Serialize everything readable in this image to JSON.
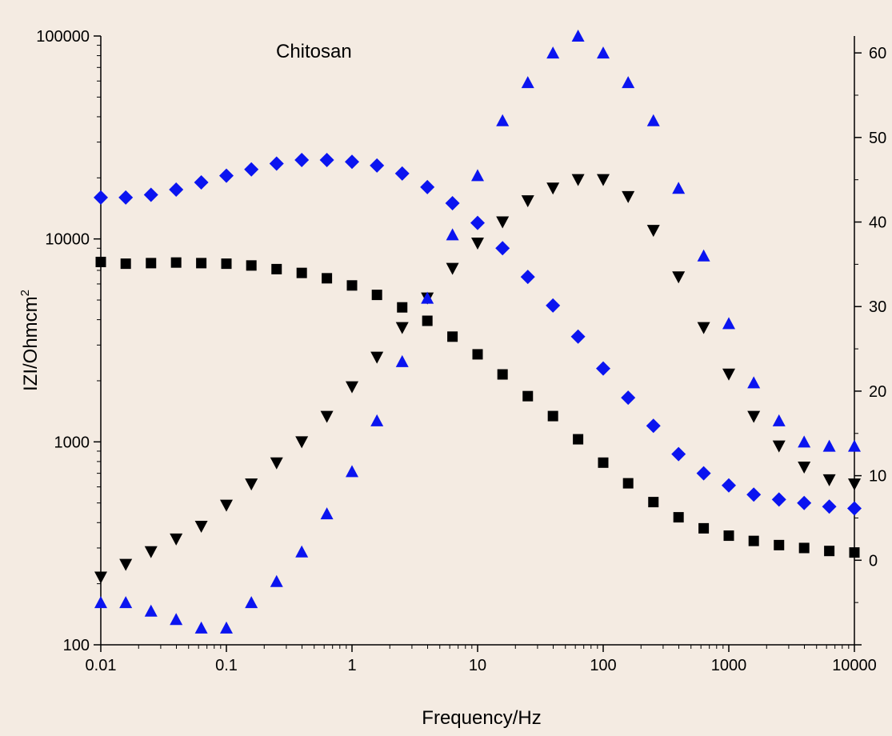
{
  "colors": {
    "background": "#f4ebe2",
    "axis": "#000000",
    "series_square": "#000000",
    "series_down_triangle": "#000000",
    "series_up_triangle": "#0a14f0",
    "series_diamond": "#0a14f0"
  },
  "chart_data": {
    "type": "scatter",
    "title": "",
    "annotation": "Chitosan",
    "xlabel": "Frequency/Hz",
    "ylabel": "IZI/Ohmcm",
    "ylabel_superscript": "2",
    "x_scale": "log",
    "y_left_scale": "log",
    "xlim": [
      0.01,
      10000
    ],
    "ylim_left": [
      100,
      100000
    ],
    "ylim_right": [
      -10,
      62
    ],
    "grid": false,
    "legend": "none",
    "x_ticks": [
      "0.01",
      "0.1",
      "1",
      "10",
      "100",
      "1000",
      "10000"
    ],
    "y_left_ticks": [
      "100",
      "1000",
      "10000",
      "100000"
    ],
    "y_right_ticks": [
      "0",
      "10",
      "20",
      "30",
      "40",
      "50",
      "60"
    ],
    "x": [
      0.01,
      0.0158,
      0.0251,
      0.0398,
      0.0631,
      0.1,
      0.158,
      0.251,
      0.398,
      0.631,
      1.0,
      1.58,
      2.51,
      3.98,
      6.31,
      10,
      15.8,
      25.1,
      39.8,
      63.1,
      100,
      158,
      251,
      398,
      631,
      1000,
      1580,
      2510,
      3980,
      6310,
      10000
    ],
    "series": [
      {
        "marker": "square",
        "axis": "left",
        "values": [
          7700,
          7550,
          7600,
          7650,
          7600,
          7550,
          7400,
          7100,
          6800,
          6400,
          5900,
          5300,
          4600,
          3950,
          3300,
          2700,
          2150,
          1680,
          1340,
          1030,
          790,
          625,
          505,
          425,
          375,
          345,
          325,
          310,
          300,
          290,
          285
        ]
      },
      {
        "marker": "triangle-down",
        "axis": "right",
        "values": [
          -2,
          -0.5,
          1,
          2.5,
          4,
          6.5,
          9,
          11.5,
          14,
          17,
          20.5,
          24,
          27.5,
          31,
          34.5,
          37.5,
          40,
          42.5,
          44,
          45,
          45,
          43,
          39,
          33.5,
          27.5,
          22,
          17,
          13.5,
          11,
          9.5,
          9
        ]
      },
      {
        "marker": "triangle-up",
        "axis": "right",
        "values": [
          -5,
          -5,
          -6,
          -7,
          -8,
          -8,
          -5,
          -2.5,
          1,
          5.5,
          10.5,
          16.5,
          23.5,
          31,
          38.5,
          45.5,
          52,
          56.5,
          60,
          62,
          60,
          56.5,
          52,
          44,
          36,
          28,
          21,
          16.5,
          14,
          13.5,
          13.5
        ]
      },
      {
        "marker": "diamond",
        "axis": "left",
        "values": [
          16000,
          16000,
          16500,
          17500,
          19000,
          20500,
          22000,
          23500,
          24500,
          24500,
          24000,
          23000,
          21000,
          18000,
          15000,
          12000,
          9000,
          6500,
          4700,
          3300,
          2300,
          1650,
          1200,
          870,
          700,
          610,
          550,
          520,
          500,
          480,
          470
        ]
      }
    ]
  }
}
